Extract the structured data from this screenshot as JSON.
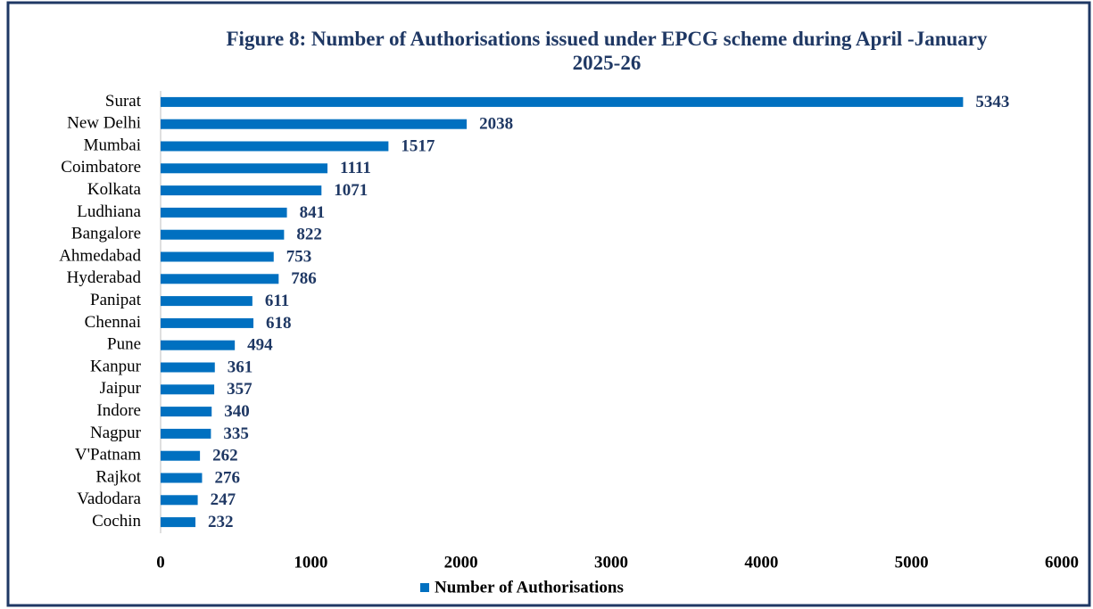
{
  "chart_data": {
    "type": "barh",
    "title": "Figure 8: Number of Authorisations issued under EPCG scheme during April -January 2025-26",
    "categories": [
      "Surat",
      "New Delhi",
      "Mumbai",
      "Coimbatore",
      "Kolkata",
      "Ludhiana",
      "Bangalore",
      "Ahmedabad",
      "Hyderabad",
      "Panipat",
      "Chennai",
      "Pune",
      "Kanpur",
      "Jaipur",
      "Indore",
      "Nagpur",
      "V'Patnam",
      "Rajkot",
      "Vadodara",
      "Cochin"
    ],
    "series": [
      {
        "name": "Number of Authorisations",
        "color": "#0070c0",
        "values": [
          5343,
          2038,
          1517,
          1111,
          1071,
          841,
          822,
          753,
          786,
          611,
          618,
          494,
          361,
          357,
          340,
          335,
          262,
          276,
          247,
          232
        ]
      }
    ],
    "xlim": [
      0,
      6000
    ],
    "xticks": [
      0,
      1000,
      2000,
      3000,
      4000,
      5000,
      6000
    ],
    "grid": false,
    "legend": "bottom"
  }
}
